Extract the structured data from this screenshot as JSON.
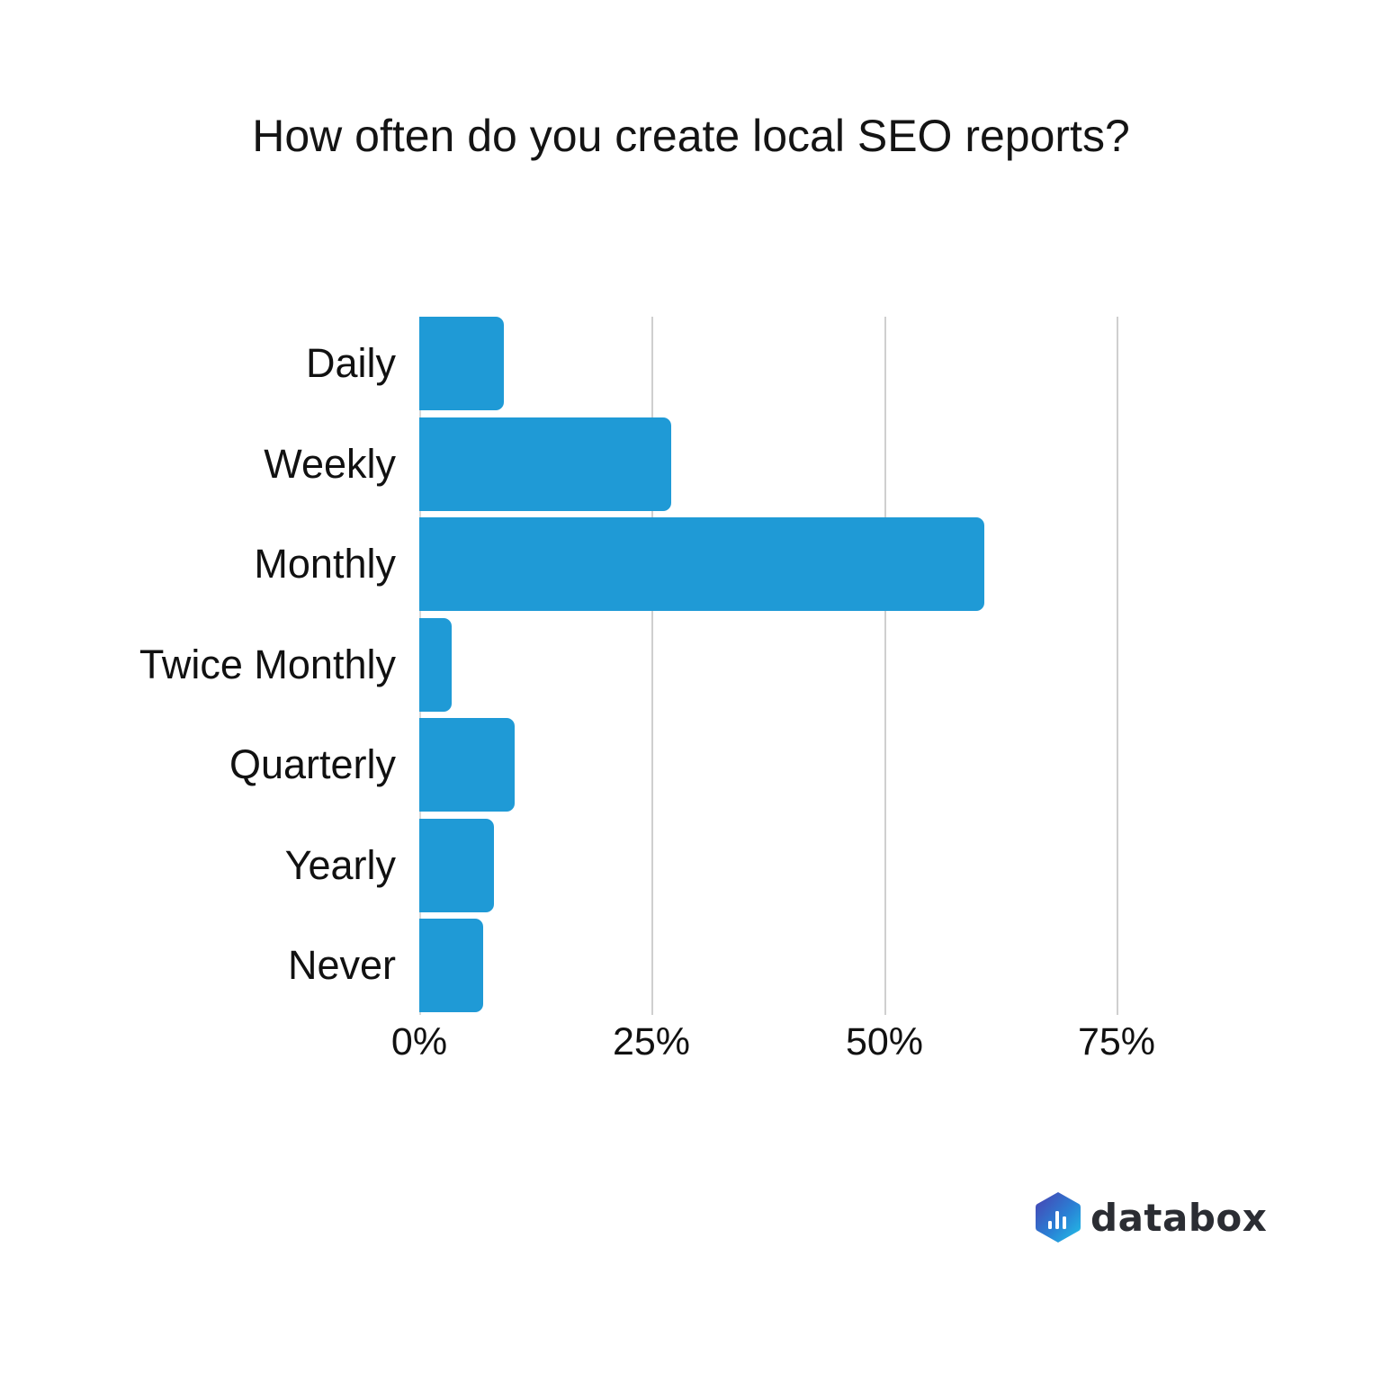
{
  "chart_data": {
    "type": "bar",
    "orientation": "horizontal",
    "title": "How often do you create local SEO reports?",
    "categories": [
      "Daily",
      "Weekly",
      "Monthly",
      "Twice Monthly",
      "Quarterly",
      "Yearly",
      "Never"
    ],
    "values": [
      9.1,
      27.1,
      60.8,
      3.5,
      10.3,
      8.0,
      6.9
    ],
    "xlabel": "",
    "ylabel": "",
    "xlim": [
      0,
      75
    ],
    "x_ticks": [
      "0%",
      "25%",
      "50%",
      "75%"
    ],
    "grid": true,
    "legend": null,
    "bar_color": "#1f9ad6"
  },
  "branding": {
    "logo_text": "databox"
  }
}
